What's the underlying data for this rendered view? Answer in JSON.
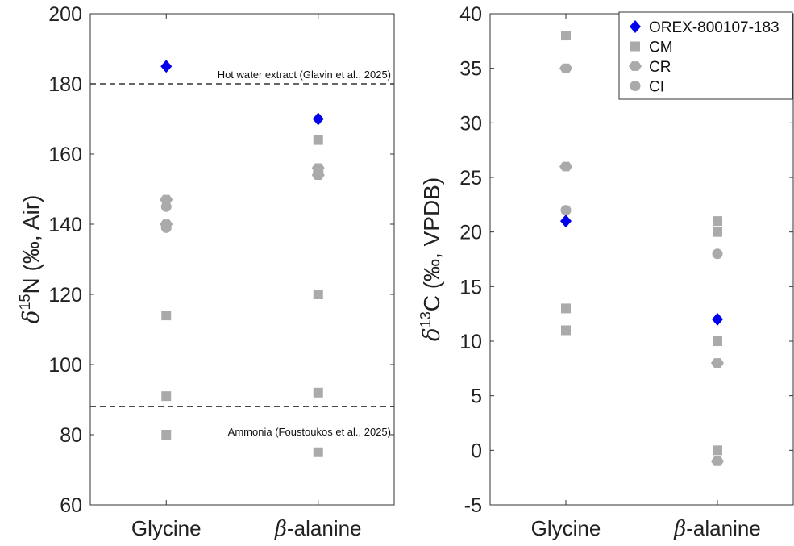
{
  "chart_data": [
    {
      "type": "scatter",
      "ylabel_prefix": "δ",
      "ylabel_sup": "15",
      "ylabel_main": "N (‰, Air)",
      "ylim": [
        60,
        200
      ],
      "yticks": [
        60,
        80,
        100,
        120,
        140,
        160,
        180,
        200
      ],
      "categories": [
        "Glycine",
        "β-alanine"
      ],
      "reference_lines": [
        {
          "y": 180,
          "label": "Hot water extract (Glavin et al., 2025)"
        },
        {
          "y": 88,
          "label": "Ammonia (Foustoukos et al., 2025)"
        }
      ],
      "series": [
        {
          "name": "OREX-800107-183",
          "points": [
            [
              "Glycine",
              185
            ],
            [
              "β-alanine",
              170
            ]
          ]
        },
        {
          "name": "CM",
          "points": [
            [
              "Glycine",
              114
            ],
            [
              "Glycine",
              91
            ],
            [
              "Glycine",
              80
            ],
            [
              "β-alanine",
              164
            ],
            [
              "β-alanine",
              120
            ],
            [
              "β-alanine",
              92
            ],
            [
              "β-alanine",
              75
            ]
          ]
        },
        {
          "name": "CR",
          "points": [
            [
              "Glycine",
              147
            ],
            [
              "Glycine",
              140
            ],
            [
              "β-alanine",
              156
            ],
            [
              "β-alanine",
              154
            ]
          ]
        },
        {
          "name": "CI",
          "points": [
            [
              "Glycine",
              145
            ],
            [
              "Glycine",
              139
            ],
            [
              "β-alanine",
              155
            ]
          ]
        }
      ],
      "grid": false
    },
    {
      "type": "scatter",
      "ylabel_prefix": "δ",
      "ylabel_sup": "13",
      "ylabel_main": "C (‰, VPDB)",
      "ylim": [
        -5,
        40
      ],
      "yticks": [
        -5,
        0,
        5,
        10,
        15,
        20,
        25,
        30,
        35,
        40
      ],
      "categories": [
        "Glycine",
        "β-alanine"
      ],
      "legend": "top-right",
      "series": [
        {
          "name": "OREX-800107-183",
          "points": [
            [
              "Glycine",
              21
            ],
            [
              "β-alanine",
              12
            ]
          ]
        },
        {
          "name": "CM",
          "points": [
            [
              "Glycine",
              38
            ],
            [
              "Glycine",
              13
            ],
            [
              "Glycine",
              11
            ],
            [
              "β-alanine",
              21
            ],
            [
              "β-alanine",
              20
            ],
            [
              "β-alanine",
              10
            ],
            [
              "β-alanine",
              0
            ]
          ]
        },
        {
          "name": "CR",
          "points": [
            [
              "Glycine",
              35
            ],
            [
              "Glycine",
              26
            ],
            [
              "β-alanine",
              8
            ],
            [
              "β-alanine",
              -1
            ]
          ]
        },
        {
          "name": "CI",
          "points": [
            [
              "Glycine",
              22
            ],
            [
              "β-alanine",
              18
            ]
          ]
        }
      ],
      "grid": false
    }
  ],
  "colors": {
    "OREX-800107-183": "#0000ee",
    "CM": "#aaaaaa",
    "CR": "#aaaaaa",
    "CI": "#aaaaaa"
  },
  "markers": {
    "OREX-800107-183": "diamond",
    "CM": "square",
    "CR": "hexagon",
    "CI": "circle"
  }
}
